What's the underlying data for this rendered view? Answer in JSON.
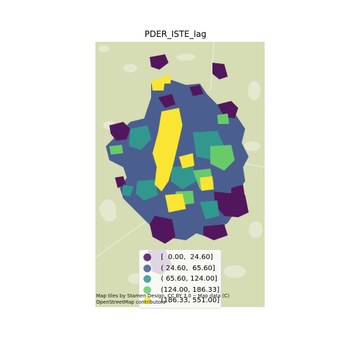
{
  "title": "PDER_ISTE_lag",
  "legend": {
    "items": [
      {
        "label": "[  0.00,  24.60]",
        "color": "#440154"
      },
      {
        "label": "( 24.60,  65.60]",
        "color": "#3b528b"
      },
      {
        "label": "( 65.60, 124.00]",
        "color": "#21918c"
      },
      {
        "label": "(124.00, 186.33]",
        "color": "#5ec962"
      },
      {
        "label": "(186.33, 551.00]",
        "color": "#fde725"
      }
    ]
  },
  "attribution": {
    "line1": "Map tiles by Stamen Design, CC BY 3.0 -- Map data (C)",
    "line2": "OpenStreetMap contributors"
  },
  "basemap": {
    "land_color": "#d6dcb4",
    "water_color": "#e9eddb"
  }
}
